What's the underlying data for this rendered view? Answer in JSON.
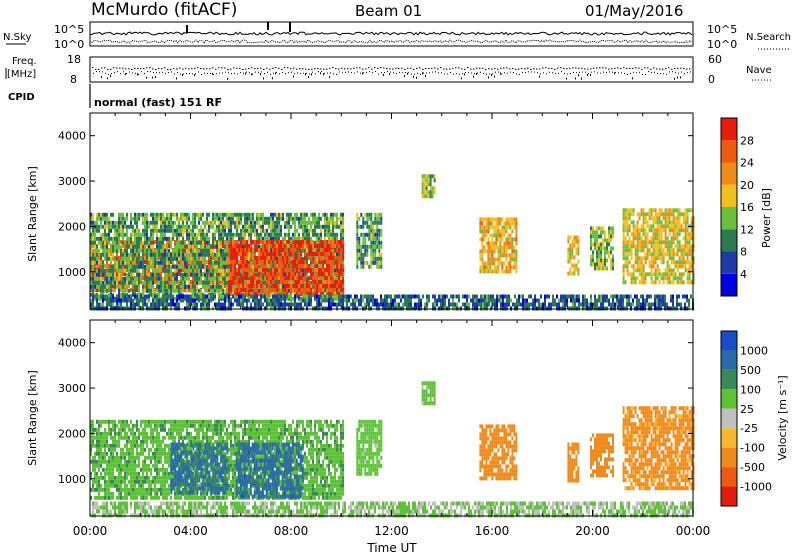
{
  "header": {
    "station": "McMurdo (fitACF)",
    "beam": "Beam 01",
    "date": "01/May/2016"
  },
  "labels": {
    "nsky": "N.Sky",
    "freq_line1": "Freq.",
    "freq_line2": "[MHz]",
    "cpid": "CPID",
    "nsearch": "N.Search",
    "nave": "Nave",
    "cpid_value": "normal (fast) 151 RF",
    "noise_ticks": [
      "10^5",
      "10^0"
    ],
    "freq_ticks": [
      "18",
      "8"
    ],
    "nave_ticks": [
      "60",
      "0"
    ]
  },
  "colors": {
    "power_scale": [
      "#0000e0",
      "#1e3ca8",
      "#2c7a50",
      "#6cbf3c",
      "#f0c020",
      "#f08a18",
      "#f05a10",
      "#e61c0c"
    ],
    "velocity_scale": [
      "#1a4cc8",
      "#2a6aa8",
      "#3a8a58",
      "#5ec238",
      "#c0c0c0",
      "#f5b830",
      "#f08a1c",
      "#ee5a14",
      "#e01c0c"
    ]
  },
  "chart_data": [
    {
      "type": "heatmap",
      "name": "power",
      "xlabel": "",
      "ylabel": "Slant Range [km]",
      "xlim": [
        0,
        24
      ],
      "ylim": [
        180,
        4500
      ],
      "yticks": [
        1000,
        2000,
        3000,
        4000
      ],
      "colorbar": {
        "label": "Power [dB]",
        "range": [
          0,
          32
        ],
        "ticks": [
          "4",
          "8",
          "12",
          "16",
          "20",
          "24",
          "28"
        ]
      },
      "regions": [
        {
          "x": [
            0.0,
            10.1
          ],
          "y": [
            600,
            1700
          ],
          "value": 25
        },
        {
          "x": [
            0.0,
            10.1
          ],
          "y": [
            400,
            2300
          ],
          "value": 12
        },
        {
          "x": [
            5.5,
            10.1
          ],
          "y": [
            500,
            1700
          ],
          "value": 28
        },
        {
          "x": [
            10.6,
            11.6
          ],
          "y": [
            1100,
            2300
          ],
          "value": 12
        },
        {
          "x": [
            13.2,
            13.7
          ],
          "y": [
            2700,
            3150
          ],
          "value": 14
        },
        {
          "x": [
            15.5,
            17.0
          ],
          "y": [
            1000,
            2200
          ],
          "value": 20
        },
        {
          "x": [
            19.0,
            19.4
          ],
          "y": [
            1000,
            1800
          ],
          "value": 18
        },
        {
          "x": [
            19.9,
            20.8
          ],
          "y": [
            1100,
            2000
          ],
          "value": 14
        },
        {
          "x": [
            21.2,
            24.0
          ],
          "y": [
            800,
            2400
          ],
          "value": 18
        },
        {
          "x": [
            0.0,
            24.0
          ],
          "y": [
            180,
            500
          ],
          "value": 8
        }
      ]
    },
    {
      "type": "heatmap",
      "name": "velocity",
      "xlabel": "Time UT",
      "ylabel": "Slant Range [km]",
      "xlim": [
        0,
        24
      ],
      "ylim": [
        180,
        4500
      ],
      "xticks": [
        "00:00",
        "04:00",
        "08:00",
        "12:00",
        "16:00",
        "20:00",
        "00:00"
      ],
      "yticks": [
        1000,
        2000,
        3000,
        4000
      ],
      "colorbar": {
        "label": "Velocity [m s⁻¹]",
        "ticks": [
          "1000",
          "500",
          "100",
          "25",
          "-25",
          "-100",
          "-500",
          "-1000"
        ]
      },
      "regions": [
        {
          "x": [
            0.0,
            10.1
          ],
          "y": [
            600,
            2300
          ],
          "value": 80
        },
        {
          "x": [
            3.2,
            5.5
          ],
          "y": [
            700,
            1800
          ],
          "value": 600
        },
        {
          "x": [
            5.8,
            8.5
          ],
          "y": [
            600,
            1800
          ],
          "value": 700
        },
        {
          "x": [
            10.6,
            11.6
          ],
          "y": [
            1100,
            2300
          ],
          "value": 50
        },
        {
          "x": [
            13.2,
            13.7
          ],
          "y": [
            2700,
            3150
          ],
          "value": 50
        },
        {
          "x": [
            15.5,
            17.0
          ],
          "y": [
            1000,
            2200
          ],
          "value": -200
        },
        {
          "x": [
            19.0,
            19.4
          ],
          "y": [
            1000,
            1800
          ],
          "value": -200
        },
        {
          "x": [
            19.9,
            20.8
          ],
          "y": [
            1100,
            2000
          ],
          "value": -200
        },
        {
          "x": [
            21.2,
            24.0
          ],
          "y": [
            800,
            2600
          ],
          "value": -150
        },
        {
          "x": [
            0.0,
            24.0
          ],
          "y": [
            180,
            500
          ],
          "value": 30
        }
      ]
    }
  ]
}
